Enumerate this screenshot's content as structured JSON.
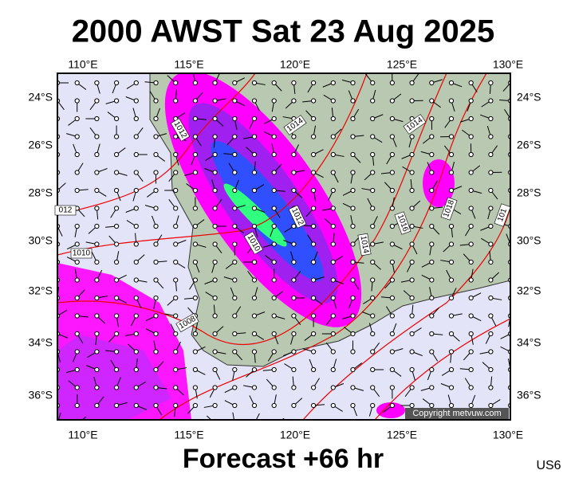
{
  "title": "2000 AWST Sat 23 Aug 2025",
  "footer": "Forecast +66 hr",
  "region": "US6",
  "copyright": "Copyright metvuw.com",
  "lon_labels": [
    "110°E",
    "115°E",
    "120°E",
    "125°E",
    "130°E"
  ],
  "lat_labels": [
    "24°S",
    "26°S",
    "28°S",
    "30°S",
    "32°S",
    "34°S",
    "36°S"
  ],
  "isobar_labels": [
    "1012",
    "1014",
    "1014",
    "012",
    "1012",
    "1010",
    "1010",
    "1008",
    "1014",
    "1016",
    "1018",
    "101"
  ]
}
